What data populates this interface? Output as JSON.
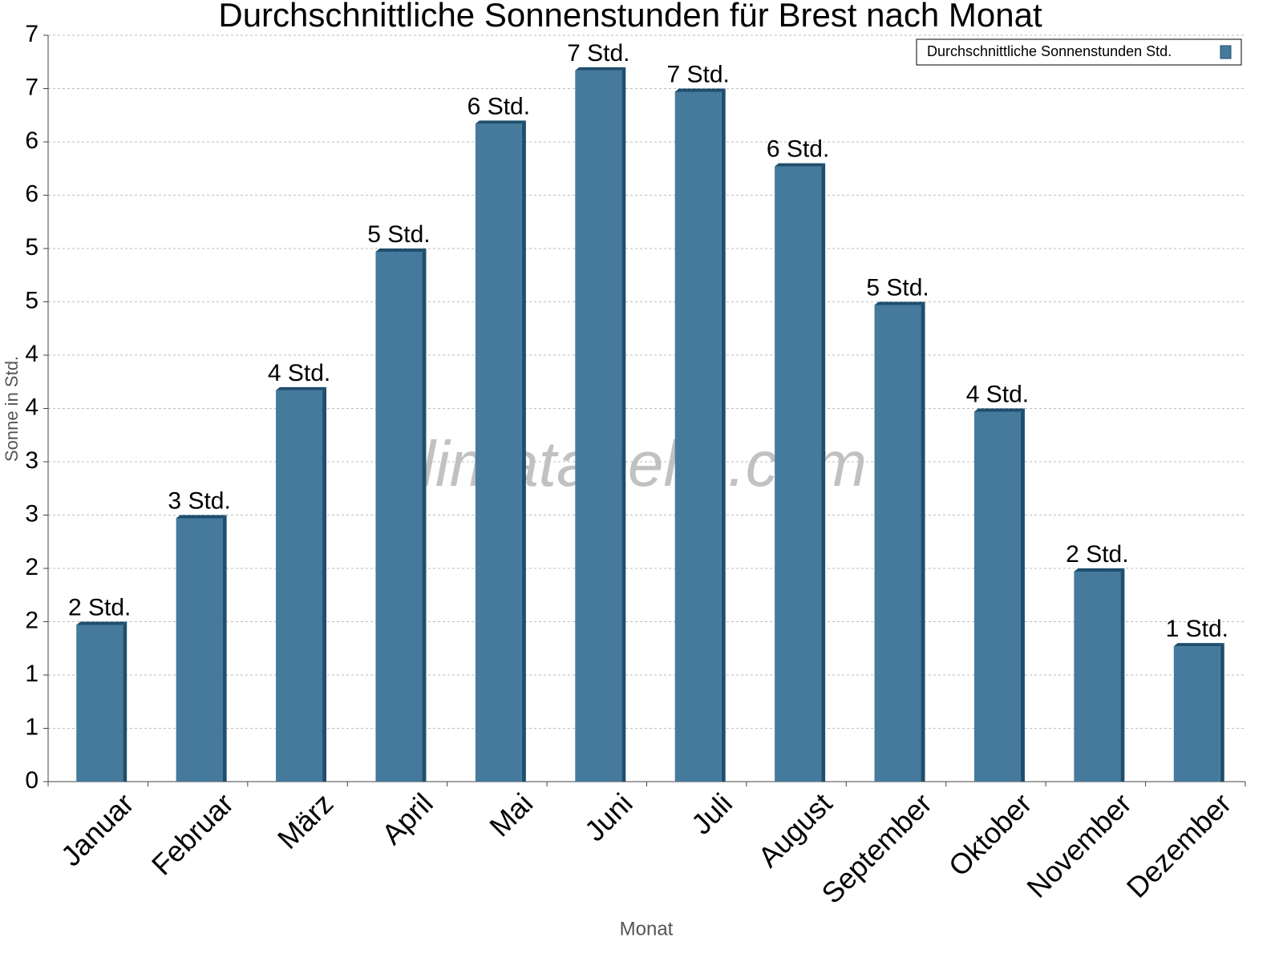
{
  "chart_data": {
    "type": "bar",
    "title": "Durchschnittliche Sonnenstunden für Brest nach Monat",
    "x_label": "Monat",
    "y_label": "Sonne in Std.",
    "watermark": "klimatabelle.com",
    "categories": [
      "Januar",
      "Februar",
      "März",
      "April",
      "Mai",
      "Juni",
      "Juli",
      "August",
      "September",
      "Oktober",
      "November",
      "Dezember"
    ],
    "series": [
      {
        "name": "Durchschnittliche Sonnenstunden Std.",
        "color": "#467a9c",
        "values": [
          1.5,
          2.5,
          3.7,
          5.0,
          6.2,
          6.7,
          6.5,
          5.8,
          4.5,
          3.5,
          2.0,
          1.3
        ],
        "value_labels": [
          "2 Std.",
          "3 Std.",
          "4 Std.",
          "5 Std.",
          "6 Std.",
          "7 Std.",
          "7 Std.",
          "6 Std.",
          "5 Std.",
          "4 Std.",
          "2 Std.",
          "1 Std."
        ]
      }
    ],
    "ylim": [
      0,
      7
    ],
    "yticks": [
      0,
      {
        "value": 0.5,
        "label": "1"
      },
      1,
      {
        "value": 1.5,
        "label": "2"
      },
      2,
      {
        "value": 2.5,
        "label": "3"
      },
      3,
      {
        "value": 3.5,
        "label": "4"
      },
      4,
      {
        "value": 4.5,
        "label": "5"
      },
      5,
      {
        "value": 5.5,
        "label": "6"
      },
      6,
      {
        "value": 6.5,
        "label": "7"
      },
      7
    ],
    "grid": true,
    "legend": "upper right"
  }
}
